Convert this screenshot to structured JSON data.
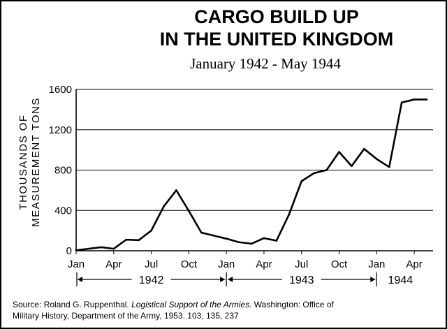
{
  "chart_data": {
    "type": "line",
    "title_lines": [
      "CARGO BUILD UP",
      "IN THE UNITED KINGDOM"
    ],
    "subtitle": "January 1942 - May 1944",
    "ylabel_lines": [
      "THOUSANDS OF",
      "MEASUREMENT TONS"
    ],
    "xlabel": "",
    "ylim": [
      0,
      1600
    ],
    "yticks": [
      0,
      400,
      800,
      1200,
      1600
    ],
    "grid": "horizontal",
    "x_tick_labels": [
      {
        "label": "Jan",
        "month_index": 0
      },
      {
        "label": "Apr",
        "month_index": 3
      },
      {
        "label": "Jul",
        "month_index": 6
      },
      {
        "label": "Oct",
        "month_index": 9
      },
      {
        "label": "Jan",
        "month_index": 12
      },
      {
        "label": "Apr",
        "month_index": 15
      },
      {
        "label": "Jul",
        "month_index": 18
      },
      {
        "label": "Oct",
        "month_index": 21
      },
      {
        "label": "Jan",
        "month_index": 24
      },
      {
        "label": "Apr",
        "month_index": 27
      }
    ],
    "years": [
      {
        "label": "1942",
        "start_month": 0,
        "end_month": 12
      },
      {
        "label": "1943",
        "start_month": 12,
        "end_month": 24
      },
      {
        "label": "1944",
        "start_month": 24,
        "end_month": 29
      }
    ],
    "series": [
      {
        "x": [
          "Jan 1942",
          "Feb 1942",
          "Mar 1942",
          "Apr 1942",
          "May 1942",
          "Jun 1942",
          "Jul 1942",
          "Aug 1942",
          "Sep 1942",
          "Oct 1942",
          "Nov 1942",
          "Dec 1942",
          "Jan 1943",
          "Feb 1943",
          "Mar 1943",
          "Apr 1943",
          "May 1943",
          "Jun 1943",
          "Jul 1943",
          "Aug 1943",
          "Sep 1943",
          "Oct 1943",
          "Nov 1943",
          "Dec 1943",
          "Jan 1944",
          "Feb 1944",
          "Mar 1944",
          "Apr 1944",
          "May 1944"
        ],
        "values": [
          5,
          20,
          35,
          20,
          110,
          105,
          200,
          440,
          600,
          395,
          180,
          150,
          120,
          85,
          70,
          125,
          100,
          360,
          690,
          770,
          800,
          980,
          840,
          1010,
          910,
          830,
          1470,
          1500,
          1500
        ]
      }
    ]
  },
  "source": {
    "prefix": "Source: Roland G. Ruppenthal. ",
    "title": "Logistical Support of the Armies.",
    "rest_line1": " Washington: Office of",
    "line2": "Military History, Department of the Army, 1953. 103, 135, 237"
  }
}
